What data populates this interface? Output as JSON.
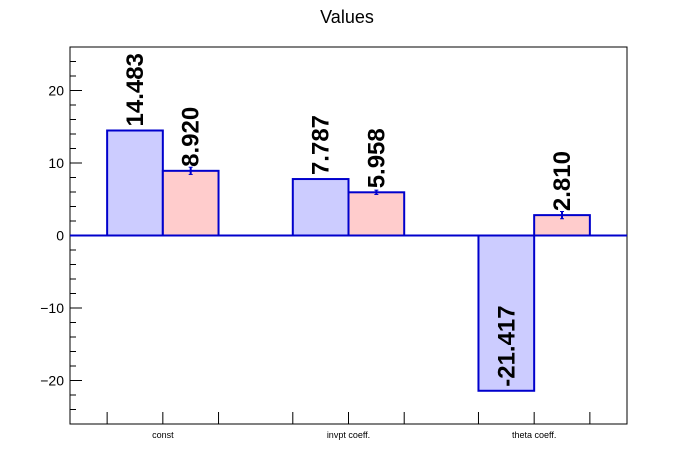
{
  "chart_data": {
    "type": "bar",
    "title": "Values",
    "xlabel": "",
    "ylabel": "",
    "categories": [
      "const",
      "invpt coeff.",
      "theta coeff."
    ],
    "ylim": [
      -26,
      26
    ],
    "y_ticks": [
      "20",
      "10",
      "0",
      "−10",
      "−20"
    ],
    "grid": false,
    "colors": {
      "series1": "#ccccff",
      "series2": "#ffcccc",
      "outline": "#0000cc"
    },
    "series": [
      {
        "values": [
          14.483,
          7.787,
          -21.417
        ],
        "labels": [
          "14.483",
          "7.787",
          "-21.417"
        ],
        "errors": [
          0,
          0,
          0
        ]
      },
      {
        "values": [
          8.92,
          5.958,
          2.81
        ],
        "labels": [
          "8.920",
          "5.958",
          "2.810"
        ],
        "errors": [
          0.5,
          0.3,
          0.5
        ]
      }
    ]
  }
}
